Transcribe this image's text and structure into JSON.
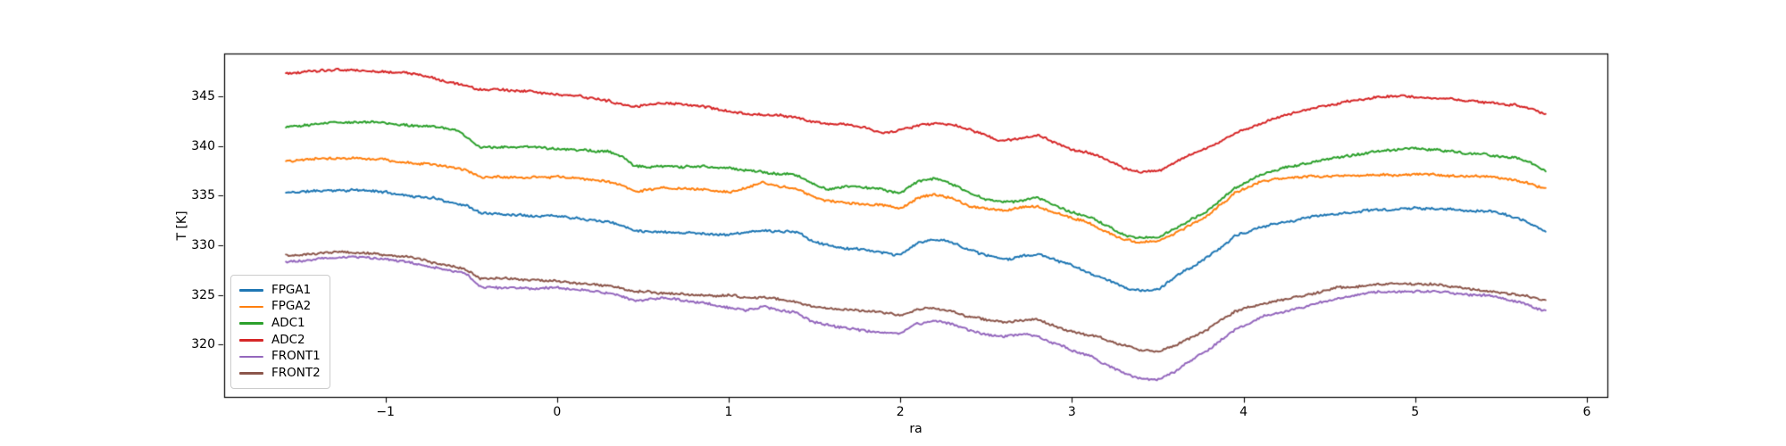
{
  "figure": {
    "background": "#ffffff",
    "axes_edge_color": "#000000",
    "tick_color": "#000000"
  },
  "chart_data": {
    "type": "line",
    "title": "",
    "xlabel": "ra",
    "ylabel": "T [K]",
    "grid": false,
    "legend_position": "lower left",
    "xlim": [
      -1.94,
      6.12
    ],
    "ylim": [
      314.7,
      349.35
    ],
    "xticks": [
      -1,
      0,
      1,
      2,
      3,
      4,
      5,
      6
    ],
    "yticks": [
      320,
      325,
      330,
      335,
      340,
      345
    ],
    "x": [
      -1.58,
      -1.45,
      -1.3,
      -1.2,
      -1.1,
      -1.0,
      -0.9,
      -0.8,
      -0.7,
      -0.6,
      -0.52,
      -0.45,
      -0.3,
      -0.15,
      0.0,
      0.15,
      0.3,
      0.38,
      0.45,
      0.6,
      0.75,
      0.9,
      1.0,
      1.1,
      1.2,
      1.3,
      1.4,
      1.48,
      1.58,
      1.68,
      1.8,
      1.9,
      2.0,
      2.1,
      2.2,
      2.3,
      2.4,
      2.5,
      2.6,
      2.7,
      2.8,
      2.9,
      3.0,
      3.1,
      3.2,
      3.3,
      3.4,
      3.5,
      3.6,
      3.7,
      3.8,
      3.95,
      4.1,
      4.25,
      4.4,
      4.55,
      4.7,
      4.85,
      5.0,
      5.15,
      5.3,
      5.45,
      5.6,
      5.7,
      5.76
    ],
    "series": [
      {
        "name": "FPGA1",
        "color": "#1f77b4",
        "values": [
          335.3,
          335.45,
          335.55,
          335.6,
          335.5,
          335.35,
          335.1,
          334.9,
          334.7,
          334.3,
          334.0,
          333.25,
          333.15,
          333.05,
          333.0,
          332.75,
          332.4,
          332.0,
          331.5,
          331.4,
          331.3,
          331.15,
          331.1,
          331.3,
          331.45,
          331.4,
          331.3,
          330.5,
          330.0,
          329.7,
          329.5,
          329.15,
          329.0,
          330.2,
          330.6,
          330.3,
          329.6,
          329.0,
          328.6,
          328.9,
          329.1,
          328.55,
          327.9,
          327.2,
          326.5,
          325.8,
          325.4,
          325.5,
          326.8,
          327.8,
          328.9,
          330.9,
          331.8,
          332.4,
          332.9,
          333.2,
          333.5,
          333.6,
          333.75,
          333.65,
          333.5,
          333.45,
          332.7,
          331.9,
          331.4
        ]
      },
      {
        "name": "FPGA2",
        "color": "#ff7f0e",
        "values": [
          338.5,
          338.65,
          338.8,
          338.85,
          338.7,
          338.6,
          338.4,
          338.3,
          338.1,
          337.8,
          337.5,
          336.9,
          336.9,
          336.85,
          336.9,
          336.7,
          336.4,
          336.05,
          335.5,
          335.8,
          335.7,
          335.55,
          335.4,
          335.8,
          336.3,
          335.9,
          335.6,
          335.0,
          334.5,
          334.3,
          334.15,
          334.0,
          333.7,
          334.7,
          335.1,
          334.75,
          334.0,
          333.7,
          333.5,
          333.8,
          333.95,
          333.3,
          332.7,
          332.3,
          331.3,
          330.6,
          330.3,
          330.45,
          331.2,
          332.2,
          333.1,
          335.3,
          336.4,
          336.8,
          337.0,
          337.0,
          337.05,
          337.1,
          337.2,
          337.1,
          336.95,
          336.85,
          336.5,
          336.0,
          335.7
        ]
      },
      {
        "name": "ADC1",
        "color": "#2ca02c",
        "values": [
          342.0,
          342.2,
          342.45,
          342.5,
          342.4,
          342.3,
          342.15,
          342.05,
          341.9,
          341.6,
          340.9,
          339.95,
          339.95,
          339.9,
          339.75,
          339.6,
          339.4,
          338.95,
          338.0,
          338.0,
          338.0,
          337.9,
          337.8,
          337.6,
          337.4,
          337.2,
          337.05,
          336.3,
          335.6,
          336.0,
          335.8,
          335.6,
          335.3,
          336.4,
          336.7,
          336.1,
          335.3,
          334.6,
          334.3,
          334.55,
          334.8,
          334.0,
          333.4,
          332.9,
          331.9,
          331.05,
          330.8,
          330.9,
          331.6,
          332.6,
          333.6,
          335.8,
          337.1,
          337.9,
          338.4,
          338.9,
          339.3,
          339.6,
          339.85,
          339.5,
          339.25,
          339.1,
          338.8,
          338.1,
          337.5
        ]
      },
      {
        "name": "ADC2",
        "color": "#d62728",
        "values": [
          347.3,
          347.5,
          347.65,
          347.7,
          347.6,
          347.5,
          347.4,
          347.2,
          346.8,
          346.4,
          346.1,
          345.7,
          345.65,
          345.5,
          345.2,
          345.0,
          344.6,
          344.15,
          343.95,
          344.3,
          344.15,
          343.85,
          343.5,
          343.3,
          343.2,
          343.05,
          342.9,
          342.45,
          342.25,
          342.1,
          341.9,
          341.35,
          341.6,
          342.1,
          342.3,
          342.2,
          341.7,
          341.15,
          340.55,
          340.8,
          341.15,
          340.4,
          339.7,
          339.3,
          338.7,
          337.85,
          337.4,
          337.55,
          338.3,
          339.2,
          339.9,
          341.3,
          342.3,
          343.15,
          343.8,
          344.3,
          344.8,
          345.1,
          344.95,
          344.8,
          344.65,
          344.4,
          344.1,
          343.6,
          343.1
        ]
      },
      {
        "name": "FRONT1",
        "color": "#9467bd",
        "values": [
          328.3,
          328.55,
          328.75,
          328.8,
          328.7,
          328.6,
          328.4,
          328.1,
          327.7,
          327.3,
          327.0,
          325.8,
          325.7,
          325.65,
          325.7,
          325.5,
          325.2,
          324.8,
          324.4,
          324.7,
          324.5,
          324.0,
          323.7,
          323.4,
          323.8,
          323.45,
          323.1,
          322.3,
          321.9,
          321.6,
          321.3,
          321.15,
          321.1,
          322.1,
          322.35,
          322.1,
          321.4,
          321.0,
          320.7,
          321.0,
          320.9,
          320.2,
          319.4,
          318.9,
          318.0,
          317.1,
          316.5,
          316.5,
          317.2,
          318.4,
          319.6,
          321.6,
          322.7,
          323.4,
          324.0,
          324.6,
          325.1,
          325.35,
          325.4,
          325.3,
          325.1,
          324.9,
          324.3,
          323.7,
          323.4
        ]
      },
      {
        "name": "FRONT2",
        "color": "#8c564b",
        "values": [
          329.0,
          329.15,
          329.3,
          329.3,
          329.2,
          329.05,
          328.9,
          328.6,
          328.1,
          327.8,
          327.5,
          326.65,
          326.6,
          326.5,
          326.4,
          326.2,
          325.9,
          325.55,
          325.35,
          325.2,
          325.0,
          324.85,
          324.9,
          324.8,
          324.7,
          324.5,
          324.3,
          323.85,
          323.7,
          323.55,
          323.4,
          323.2,
          322.9,
          323.5,
          323.65,
          323.4,
          322.8,
          322.5,
          322.2,
          322.4,
          322.5,
          321.8,
          321.3,
          320.95,
          320.4,
          319.9,
          319.4,
          319.3,
          319.9,
          320.7,
          321.6,
          323.3,
          324.1,
          324.65,
          325.1,
          325.8,
          325.95,
          326.05,
          326.0,
          325.9,
          325.6,
          325.35,
          324.95,
          324.65,
          324.5
        ]
      }
    ]
  }
}
